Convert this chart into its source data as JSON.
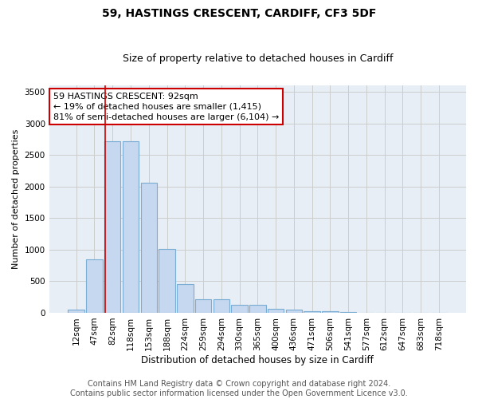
{
  "title1": "59, HASTINGS CRESCENT, CARDIFF, CF3 5DF",
  "title2": "Size of property relative to detached houses in Cardiff",
  "xlabel": "Distribution of detached houses by size in Cardiff",
  "ylabel": "Number of detached properties",
  "categories": [
    "12sqm",
    "47sqm",
    "82sqm",
    "118sqm",
    "153sqm",
    "188sqm",
    "224sqm",
    "259sqm",
    "294sqm",
    "330sqm",
    "365sqm",
    "400sqm",
    "436sqm",
    "471sqm",
    "506sqm",
    "541sqm",
    "577sqm",
    "612sqm",
    "647sqm",
    "683sqm",
    "718sqm"
  ],
  "values": [
    55,
    850,
    2720,
    2720,
    2060,
    1010,
    450,
    215,
    210,
    130,
    130,
    60,
    50,
    30,
    25,
    10,
    5,
    5,
    5,
    5,
    5
  ],
  "bar_color": "#c5d8ef",
  "bar_edge_color": "#7aadd4",
  "grid_color": "#cccccc",
  "bg_color": "#e8eef5",
  "red_line_x": 1.575,
  "annotation_text": "59 HASTINGS CRESCENT: 92sqm\n← 19% of detached houses are smaller (1,415)\n81% of semi-detached houses are larger (6,104) →",
  "annotation_box_color": "#ffffff",
  "annotation_box_edge": "#cc0000",
  "ylim": [
    0,
    3600
  ],
  "yticks": [
    0,
    500,
    1000,
    1500,
    2000,
    2500,
    3000,
    3500
  ],
  "footnote1": "Contains HM Land Registry data © Crown copyright and database right 2024.",
  "footnote2": "Contains public sector information licensed under the Open Government Licence v3.0.",
  "title1_fontsize": 10,
  "title2_fontsize": 9,
  "xlabel_fontsize": 8.5,
  "ylabel_fontsize": 8,
  "tick_fontsize": 7.5,
  "annot_fontsize": 8,
  "footnote_fontsize": 7
}
